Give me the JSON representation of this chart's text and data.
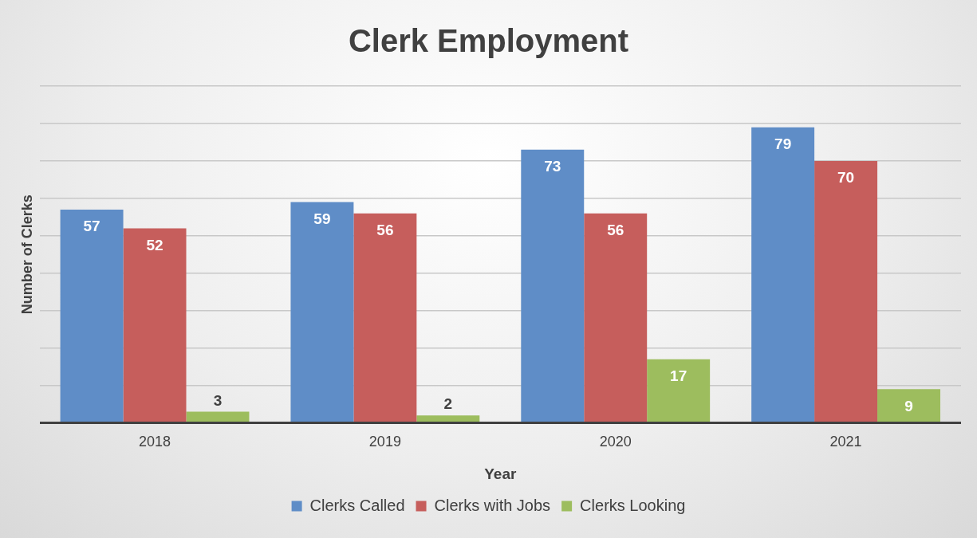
{
  "chart_data": {
    "type": "bar",
    "title": "Clerk Employment",
    "xlabel": "Year",
    "ylabel": "Number of Clerks",
    "categories": [
      "2018",
      "2019",
      "2020",
      "2021"
    ],
    "series": [
      {
        "name": "Clerks Called",
        "color": "#5f8dc7",
        "values": [
          57,
          59,
          73,
          79
        ]
      },
      {
        "name": "Clerks with Jobs",
        "color": "#c65e5c",
        "values": [
          52,
          56,
          56,
          70
        ]
      },
      {
        "name": "Clerks Looking",
        "color": "#9dbd5e",
        "values": [
          3,
          2,
          17,
          9
        ]
      }
    ],
    "ylim": [
      0,
      90
    ],
    "yticks": [
      {
        "value": 0,
        "label": null
      },
      {
        "value": 10,
        "label": null
      },
      {
        "value": 20,
        "label": null
      },
      {
        "value": 30,
        "label": null
      },
      {
        "value": 40,
        "label": null
      },
      {
        "value": 50,
        "label": null
      },
      {
        "value": 60,
        "label": null
      },
      {
        "value": 70,
        "label": null
      },
      {
        "value": 80,
        "label": null
      },
      {
        "value": 90,
        "label": null
      }
    ],
    "tick_labels": "x",
    "grid": "y",
    "legend": "bottom",
    "data_labels": true
  }
}
